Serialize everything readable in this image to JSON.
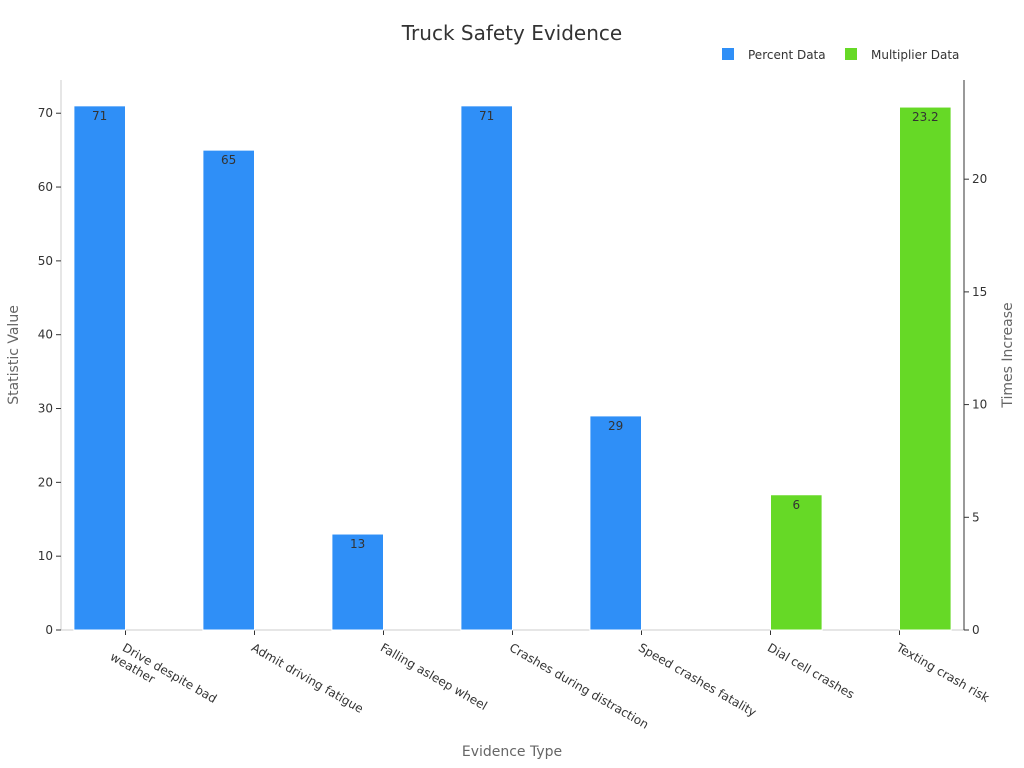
{
  "chart_data": {
    "type": "bar",
    "title": "Truck Safety Evidence",
    "xlabel": "Evidence Type",
    "ylabel": "Statistic Value",
    "y2label": "Times Increase",
    "categories": [
      "Drive despite bad weather",
      "Admit driving fatigue",
      "Falling asleep wheel",
      "Crashes during distraction",
      "Speed crashes fatality",
      "Dial cell crashes",
      "Texting crash risk"
    ],
    "category_lines": [
      [
        "Drive despite bad",
        "weather"
      ],
      [
        "Admit driving fatigue"
      ],
      [
        "Falling asleep wheel"
      ],
      [
        "Crashes during distraction"
      ],
      [
        "Speed crashes fatality"
      ],
      [
        "Dial cell crashes"
      ],
      [
        "Texting crash risk"
      ]
    ],
    "series": [
      {
        "name": "Percent Data",
        "axis": "left",
        "color": "#2f8ff7",
        "values": [
          71,
          65,
          13,
          71,
          29,
          null,
          null
        ],
        "labels": [
          "71",
          "65",
          "13",
          "71",
          "29",
          null,
          null
        ]
      },
      {
        "name": "Multiplier Data",
        "axis": "right",
        "color": "#66d926",
        "values": [
          null,
          null,
          null,
          null,
          null,
          6,
          23.2
        ],
        "labels": [
          null,
          null,
          null,
          null,
          null,
          "6",
          "23.2"
        ]
      }
    ],
    "ylim": [
      0,
      74.5
    ],
    "y2lim": [
      0,
      24.4
    ],
    "yticks": [
      0,
      10,
      20,
      30,
      40,
      50,
      60,
      70
    ],
    "y2ticks": [
      0,
      5,
      10,
      15,
      20
    ],
    "grid": false,
    "legend_position": "top-right"
  }
}
